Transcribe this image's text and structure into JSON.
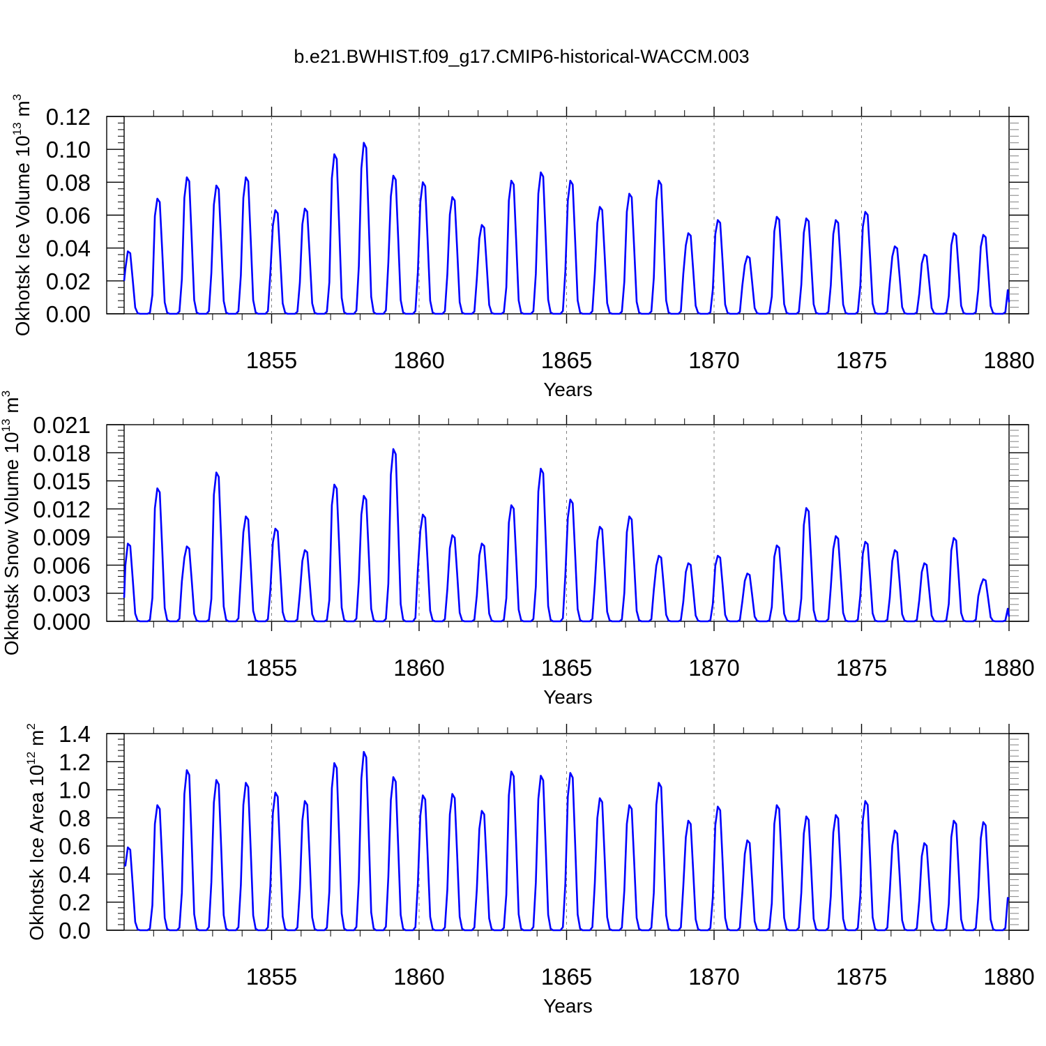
{
  "title": "b.e21.BWHIST.f09_g17.CMIP6-historical-WACCM.003",
  "colors": {
    "line": "#0000ff",
    "axis": "#000000",
    "grid": "#808080",
    "background": "#ffffff"
  },
  "chart_data": [
    {
      "type": "line",
      "ylabel_parts": [
        "Okhotsk Ice Volume 10",
        "13",
        " m",
        "3"
      ],
      "xlabel": "Years",
      "xlim": [
        1850,
        1880
      ],
      "ylim": [
        0,
        0.12
      ],
      "y_ticks": [
        "0.00",
        "0.02",
        "0.04",
        "0.06",
        "0.08",
        "0.10",
        "0.12"
      ],
      "x_ticks": [
        "1855",
        "1860",
        "1865",
        "1870",
        "1875",
        "1880"
      ],
      "grid": "vertical dashed at labeled years",
      "peaks": [
        0.038,
        0.07,
        0.083,
        0.078,
        0.083,
        0.063,
        0.064,
        0.097,
        0.104,
        0.084,
        0.08,
        0.071,
        0.054,
        0.081,
        0.086,
        0.081,
        0.065,
        0.073,
        0.081,
        0.049,
        0.057,
        0.035,
        0.059,
        0.058,
        0.057,
        0.062,
        0.041,
        0.036,
        0.049,
        0.048
      ],
      "start_value": 0.02,
      "end_value": 0.007
    },
    {
      "type": "line",
      "ylabel_parts": [
        "Okhotsk Snow Volume 10",
        "13",
        " m",
        "3"
      ],
      "xlabel": "Years",
      "xlim": [
        1850,
        1880
      ],
      "ylim": [
        0,
        0.021
      ],
      "y_ticks": [
        "0.000",
        "0.003",
        "0.006",
        "0.009",
        "0.012",
        "0.015",
        "0.018",
        "0.021"
      ],
      "x_ticks": [
        "1855",
        "1860",
        "1865",
        "1870",
        "1875",
        "1880"
      ],
      "grid": "vertical dashed at labeled years",
      "peaks": [
        0.0083,
        0.0142,
        0.008,
        0.0159,
        0.0112,
        0.0099,
        0.0076,
        0.0146,
        0.0134,
        0.0184,
        0.0114,
        0.0092,
        0.0083,
        0.0124,
        0.0163,
        0.013,
        0.0101,
        0.0112,
        0.007,
        0.0062,
        0.007,
        0.0051,
        0.0081,
        0.0121,
        0.0091,
        0.0085,
        0.0076,
        0.0062,
        0.0089,
        0.0045
      ],
      "start_value": 0.0025,
      "end_value": 0.0005
    },
    {
      "type": "line",
      "ylabel_parts": [
        "Okhotsk Ice Area 10",
        "12",
        " m",
        "2"
      ],
      "xlabel": "Years",
      "xlim": [
        1850,
        1880
      ],
      "ylim": [
        0,
        1.4
      ],
      "y_ticks": [
        "0.0",
        "0.2",
        "0.4",
        "0.6",
        "0.8",
        "1.0",
        "1.2",
        "1.4"
      ],
      "x_ticks": [
        "1855",
        "1860",
        "1865",
        "1870",
        "1875",
        "1880"
      ],
      "grid": "vertical dashed at labeled years",
      "peaks": [
        0.59,
        0.89,
        1.14,
        1.07,
        1.05,
        0.98,
        0.92,
        1.19,
        1.27,
        1.09,
        0.96,
        0.97,
        0.85,
        1.13,
        1.1,
        1.12,
        0.94,
        0.89,
        1.05,
        0.78,
        0.88,
        0.64,
        0.89,
        0.81,
        0.82,
        0.92,
        0.71,
        0.62,
        0.78,
        0.77
      ],
      "start_value": 0.46,
      "end_value": 0.22
    }
  ]
}
